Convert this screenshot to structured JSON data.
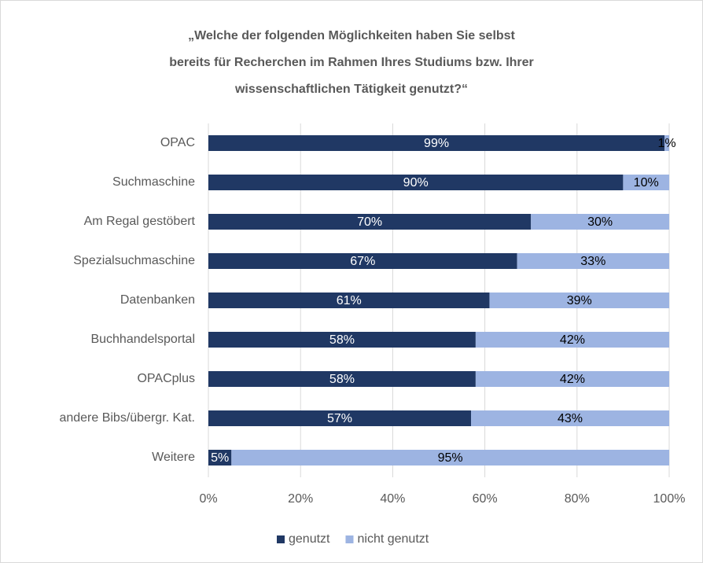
{
  "chart_data": {
    "type": "stacked-bar-horizontal",
    "title": [
      "„Welche der folgenden Möglichkeiten haben Sie selbst",
      "bereits für Recherchen im Rahmen Ihres Studiums bzw. Ihrer",
      "wissenschaftlichen Tätigkeit genutzt?“"
    ],
    "categories": [
      "OPAC",
      "Suchmaschine",
      "Am Regal gestöbert",
      "Spezialsuchmaschine",
      "Datenbanken",
      "Buchhandelsportal",
      "OPACplus",
      "andere Bibs/übergr. Kat.",
      "Weitere"
    ],
    "series": [
      {
        "name": "genutzt",
        "color": "#203864",
        "values": [
          99,
          90,
          70,
          67,
          61,
          58,
          58,
          57,
          5
        ],
        "value_labels": [
          "99%",
          "90%",
          "70%",
          "67%",
          "61%",
          "58%",
          "58%",
          "57%",
          "5%"
        ]
      },
      {
        "name": "nicht genutzt",
        "color": "#9db4e2",
        "values": [
          1,
          10,
          30,
          33,
          39,
          42,
          42,
          43,
          95
        ],
        "value_labels": [
          "1%",
          "10%",
          "30%",
          "33%",
          "39%",
          "42%",
          "42%",
          "43%",
          "95%"
        ]
      }
    ],
    "xlim": [
      0,
      100
    ],
    "xticks": [
      {
        "value": 0,
        "label": "0%"
      },
      {
        "value": 20,
        "label": "20%"
      },
      {
        "value": 40,
        "label": "40%"
      },
      {
        "value": 60,
        "label": "60%"
      },
      {
        "value": 80,
        "label": "80%"
      },
      {
        "value": 100,
        "label": "100%"
      }
    ],
    "grid": true,
    "legend": "bottom"
  }
}
